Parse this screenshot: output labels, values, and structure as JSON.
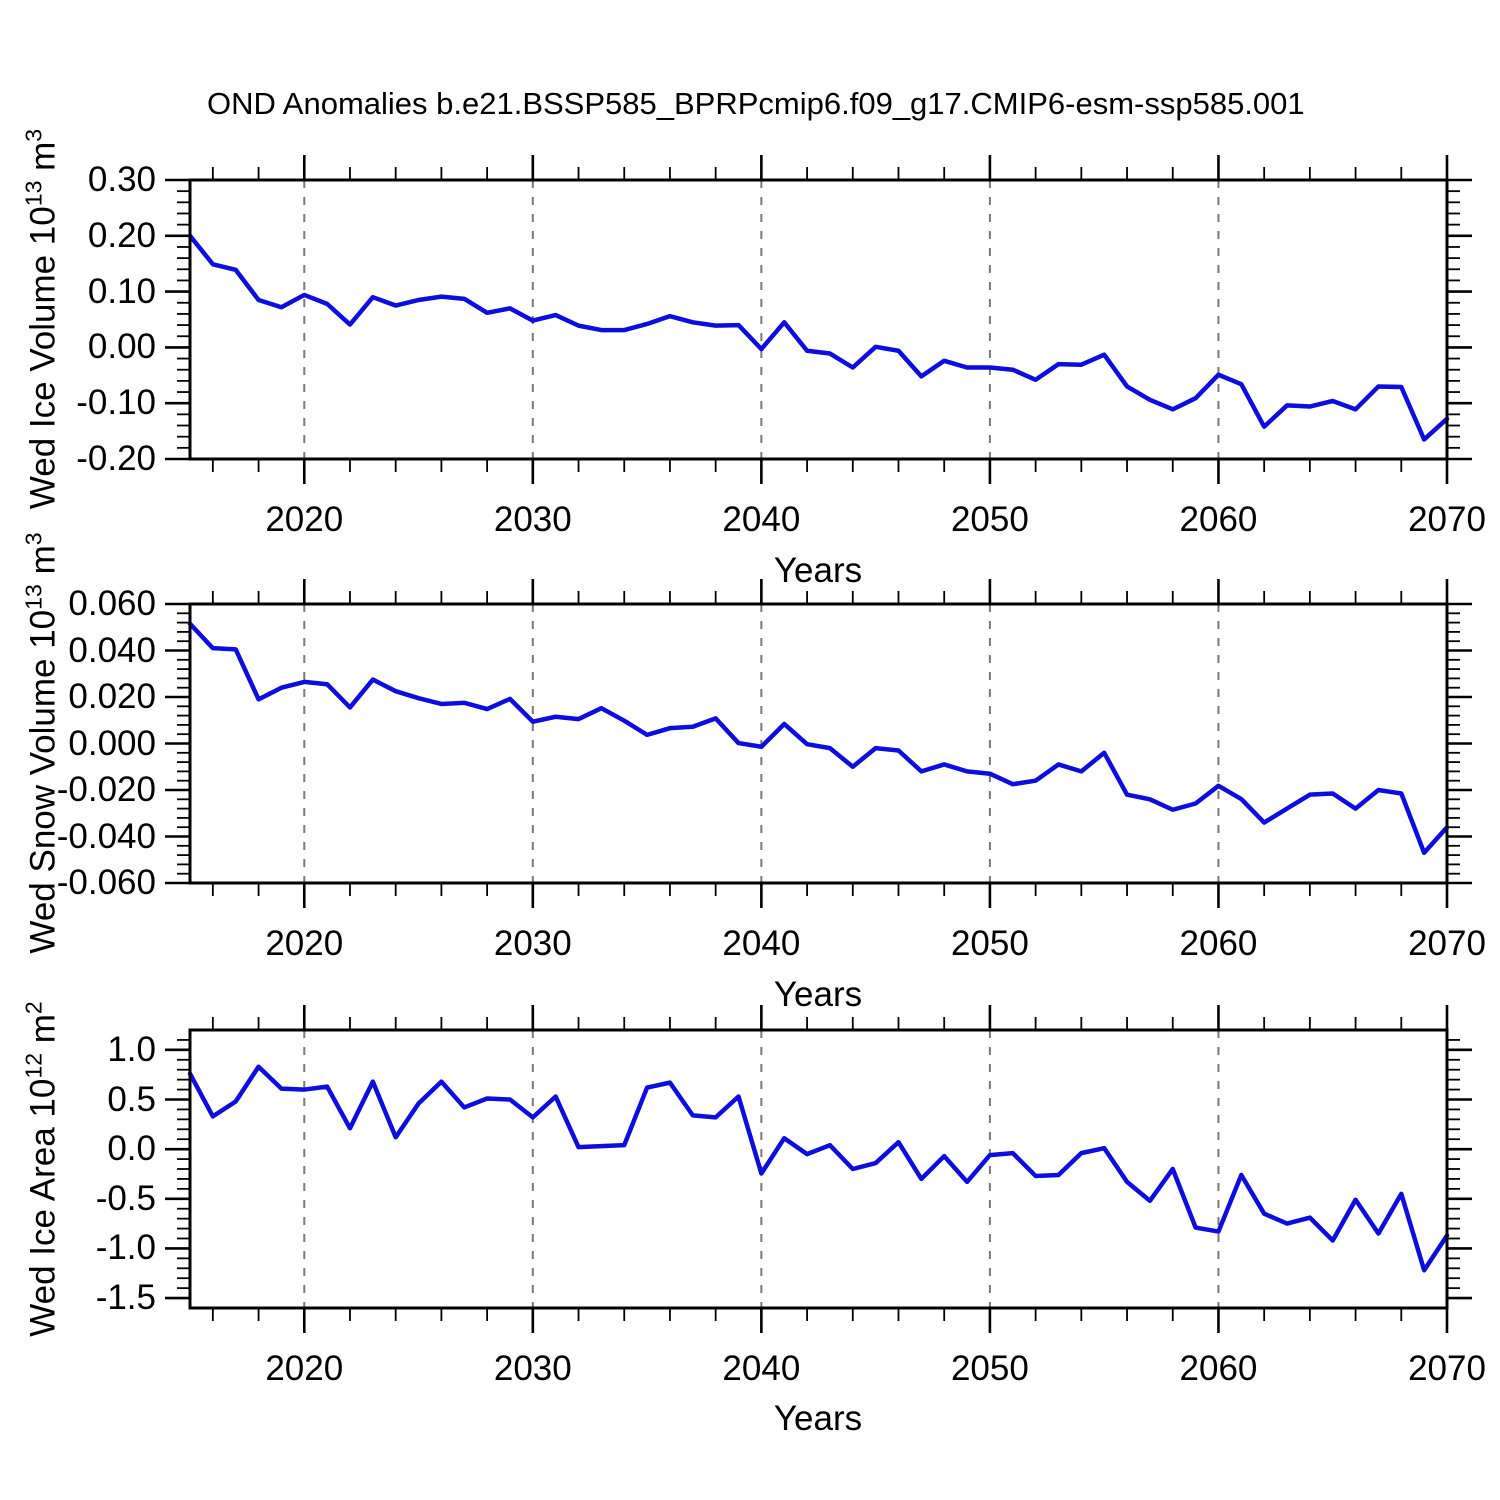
{
  "title": "OND Anomalies b.e21.BSSP585_BPRPcmip6.f09_g17.CMIP6-esm-ssp585.001",
  "colors": {
    "line": "#0d0ddd",
    "axis": "#000000",
    "grid": "#7a7a7a",
    "text": "#000000",
    "background": "#ffffff"
  },
  "chart_data": [
    {
      "type": "line",
      "name": "wed-ice-volume-anomaly",
      "xlabel": "Years",
      "ylabel": {
        "p0": "Wed Ice Volume 10",
        "e0": "13",
        "p1": " m",
        "e1": "3"
      },
      "x_start": 2015,
      "x_end": 2070,
      "x_step": 1,
      "ylim": [
        -0.2,
        0.3
      ],
      "yticks": [
        0.3,
        0.2,
        0.1,
        0.0,
        -0.1,
        -0.2
      ],
      "ytick_labels": [
        "0.30",
        "0.20",
        "0.10",
        "0.00",
        "-0.10",
        "-0.20"
      ],
      "ytick_minor_step": 0.02,
      "xticks": [
        2020,
        2030,
        2040,
        2050,
        2060,
        2070
      ],
      "xtick_labels": [
        "2020",
        "2030",
        "2040",
        "2050",
        "2060",
        "2070"
      ],
      "xtick_minor_step": 2,
      "grid_years": [
        2020,
        2030,
        2040,
        2050,
        2060
      ],
      "grid": "vertical-dashed",
      "legend": "none",
      "values": [
        0.2,
        0.149,
        0.139,
        0.085,
        0.072,
        0.094,
        0.078,
        0.041,
        0.09,
        0.075,
        0.085,
        0.091,
        0.087,
        0.062,
        0.07,
        0.048,
        0.058,
        0.039,
        0.031,
        0.031,
        0.042,
        0.056,
        0.045,
        0.039,
        0.04,
        -0.003,
        0.045,
        -0.006,
        -0.011,
        -0.036,
        0.001,
        -0.006,
        -0.052,
        -0.024,
        -0.036,
        -0.036,
        -0.04,
        -0.058,
        -0.03,
        -0.031,
        -0.013,
        -0.07,
        -0.094,
        -0.111,
        -0.091,
        -0.049,
        -0.066,
        -0.142,
        -0.104,
        -0.106,
        -0.096,
        -0.111,
        -0.07,
        -0.071,
        -0.165,
        -0.128
      ]
    },
    {
      "type": "line",
      "name": "wed-snow-volume-anomaly",
      "xlabel": "Years",
      "ylabel": {
        "p0": "Wed Snow Volume 10",
        "e0": "13",
        "p1": " m",
        "e1": "3"
      },
      "x_start": 2015,
      "x_end": 2070,
      "x_step": 1,
      "ylim": [
        -0.06,
        0.06
      ],
      "yticks": [
        0.06,
        0.04,
        0.02,
        0.0,
        -0.02,
        -0.04,
        -0.06
      ],
      "ytick_labels": [
        "0.060",
        "0.040",
        "0.020",
        "0.000",
        "-0.020",
        "-0.040",
        "-0.060"
      ],
      "ytick_minor_step": 0.004,
      "xticks": [
        2020,
        2030,
        2040,
        2050,
        2060,
        2070
      ],
      "xtick_labels": [
        "2020",
        "2030",
        "2040",
        "2050",
        "2060",
        "2070"
      ],
      "xtick_minor_step": 2,
      "grid_years": [
        2020,
        2030,
        2040,
        2050,
        2060
      ],
      "grid": "vertical-dashed",
      "legend": "none",
      "values": [
        0.0515,
        0.041,
        0.0405,
        0.019,
        0.024,
        0.0265,
        0.0255,
        0.0155,
        0.0275,
        0.0225,
        0.0195,
        0.017,
        0.0175,
        0.0148,
        0.0192,
        0.0094,
        0.0115,
        0.0105,
        0.0152,
        0.0098,
        0.0037,
        0.0066,
        0.0072,
        0.0108,
        0.0002,
        -0.0014,
        0.0084,
        -0.0003,
        -0.002,
        -0.01,
        -0.002,
        -0.003,
        -0.012,
        -0.009,
        -0.012,
        -0.013,
        -0.0175,
        -0.016,
        -0.009,
        -0.012,
        -0.004,
        -0.022,
        -0.024,
        -0.0285,
        -0.0258,
        -0.0182,
        -0.0239,
        -0.034,
        -0.028,
        -0.022,
        -0.0215,
        -0.028,
        -0.02,
        -0.0215,
        -0.047,
        -0.036
      ]
    },
    {
      "type": "line",
      "name": "wed-ice-area-anomaly",
      "xlabel": "Years",
      "ylabel": {
        "p0": "Wed Ice Area 10",
        "e0": "12",
        "p1": " m",
        "e1": "2"
      },
      "x_start": 2015,
      "x_end": 2070,
      "x_step": 1,
      "ylim": [
        -1.6,
        1.2
      ],
      "yticks": [
        1.0,
        0.5,
        0.0,
        -0.5,
        -1.0,
        -1.5
      ],
      "ytick_labels": [
        "1.0",
        "0.5",
        "0.0",
        "-0.5",
        "-1.0",
        "-1.5"
      ],
      "ytick_minor_step": 0.1,
      "xticks": [
        2020,
        2030,
        2040,
        2050,
        2060,
        2070
      ],
      "xtick_labels": [
        "2020",
        "2030",
        "2040",
        "2050",
        "2060",
        "2070"
      ],
      "xtick_minor_step": 2,
      "grid_years": [
        2020,
        2030,
        2040,
        2050,
        2060
      ],
      "grid": "vertical-dashed",
      "legend": "none",
      "values": [
        0.76,
        0.33,
        0.48,
        0.83,
        0.61,
        0.6,
        0.63,
        0.21,
        0.68,
        0.12,
        0.46,
        0.68,
        0.42,
        0.51,
        0.5,
        0.32,
        0.53,
        0.02,
        0.03,
        0.04,
        0.62,
        0.67,
        0.34,
        0.32,
        0.53,
        -0.245,
        0.11,
        -0.05,
        0.04,
        -0.2,
        -0.14,
        0.07,
        -0.3,
        -0.07,
        -0.33,
        -0.06,
        -0.04,
        -0.27,
        -0.26,
        -0.04,
        0.01,
        -0.33,
        -0.52,
        -0.2,
        -0.79,
        -0.83,
        -0.26,
        -0.65,
        -0.75,
        -0.69,
        -0.92,
        -0.51,
        -0.85,
        -0.45,
        -1.22,
        -0.87
      ]
    }
  ]
}
